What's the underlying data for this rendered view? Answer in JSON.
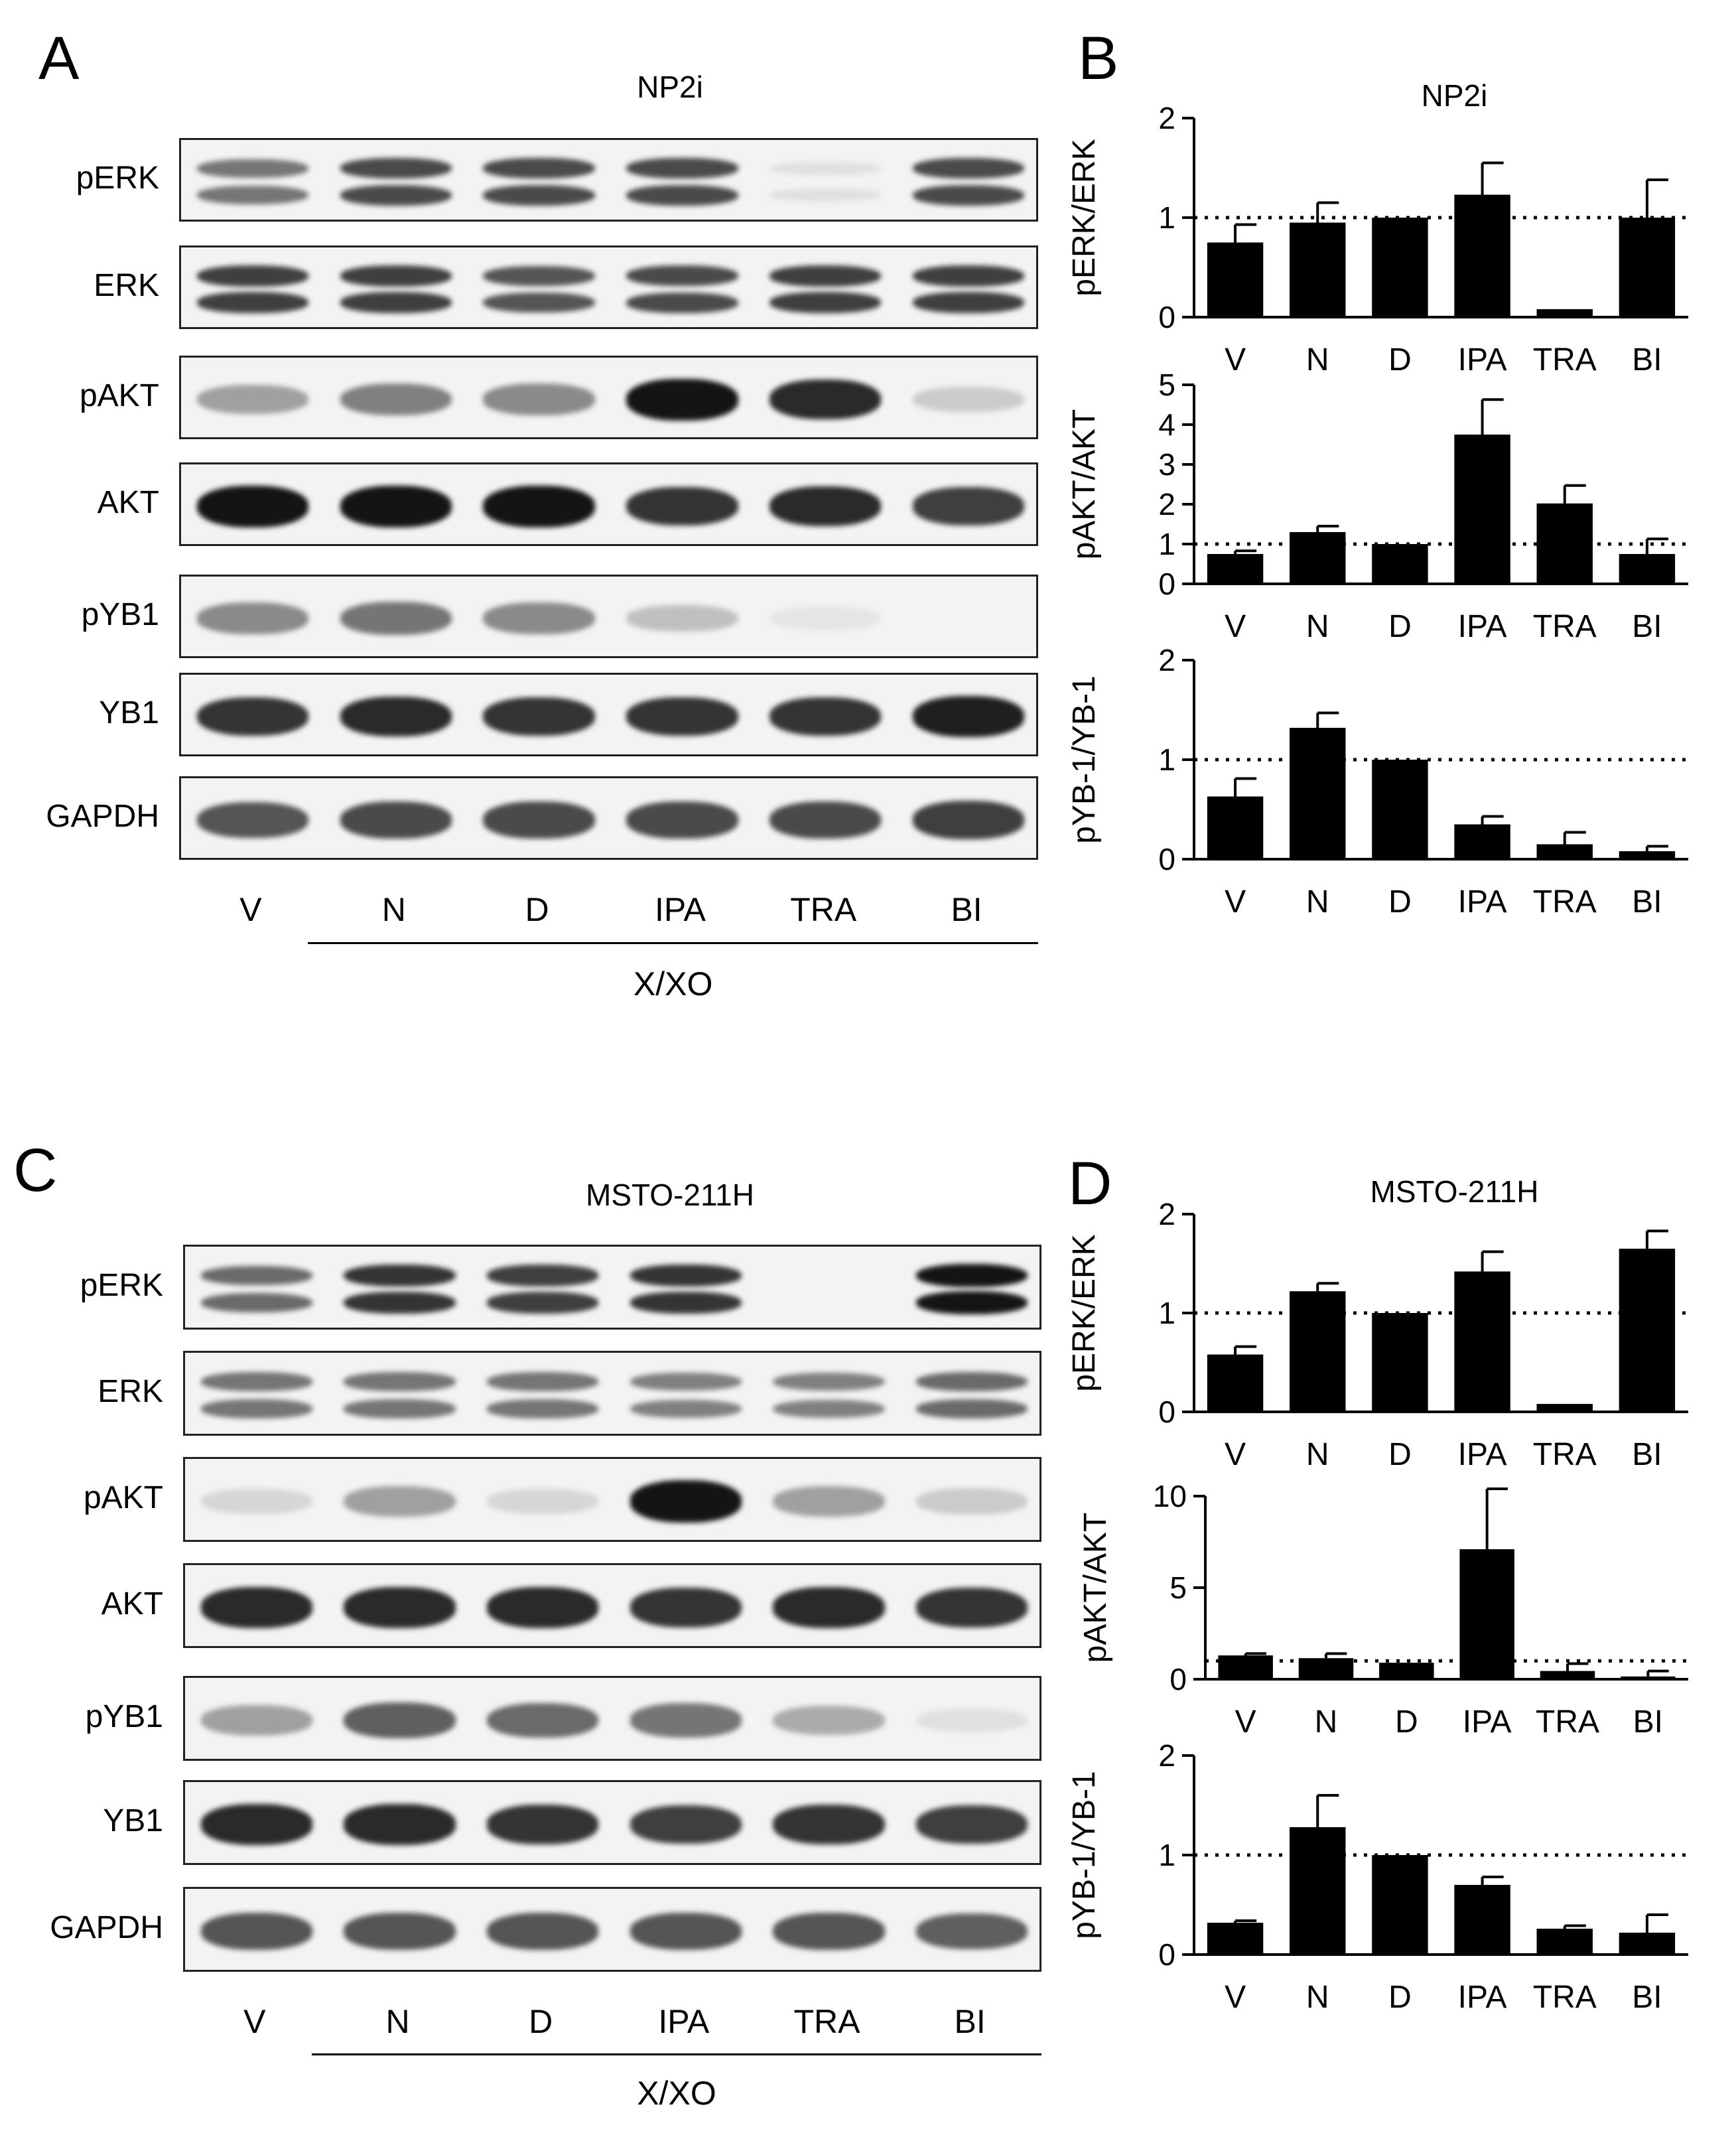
{
  "panels": {
    "A": {
      "letter": "A",
      "title": "NP2i",
      "rows": [
        "pERK",
        "ERK",
        "pAKT",
        "AKT",
        "pYB1",
        "YB1",
        "GAPDH"
      ],
      "lanes": [
        "V",
        "N",
        "D",
        "IPA",
        "TRA",
        "BI"
      ],
      "group_label": "X/XO"
    },
    "B": {
      "letter": "B",
      "title": "NP2i"
    },
    "C": {
      "letter": "C",
      "title": "MSTO-211H",
      "rows": [
        "pERK",
        "ERK",
        "pAKT",
        "AKT",
        "pYB1",
        "YB1",
        "GAPDH"
      ],
      "lanes": [
        "V",
        "N",
        "D",
        "IPA",
        "TRA",
        "BI"
      ],
      "group_label": "X/XO"
    },
    "D": {
      "letter": "D",
      "title": "MSTO-211H"
    }
  },
  "blot_intensity": {
    "A": {
      "pERK": [
        0.55,
        0.75,
        0.75,
        0.75,
        0.05,
        0.75
      ],
      "ERK": [
        0.8,
        0.8,
        0.7,
        0.75,
        0.8,
        0.8
      ],
      "pAKT": [
        0.35,
        0.5,
        0.45,
        1.0,
        0.9,
        0.15
      ],
      "AKT": [
        1.0,
        1.0,
        1.0,
        0.85,
        0.9,
        0.8
      ],
      "pYB1": [
        0.45,
        0.55,
        0.45,
        0.2,
        0.03,
        0.0
      ],
      "YB1": [
        0.85,
        0.9,
        0.85,
        0.85,
        0.85,
        0.95
      ],
      "GAPDH": [
        0.7,
        0.75,
        0.75,
        0.75,
        0.75,
        0.8
      ]
    },
    "C": {
      "pERK": [
        0.6,
        0.85,
        0.8,
        0.85,
        0.0,
        1.0
      ],
      "ERK": [
        0.55,
        0.55,
        0.55,
        0.5,
        0.5,
        0.6
      ],
      "pAKT": [
        0.1,
        0.35,
        0.1,
        1.0,
        0.35,
        0.15
      ],
      "AKT": [
        0.9,
        0.9,
        0.9,
        0.85,
        0.9,
        0.85
      ],
      "pYB1": [
        0.35,
        0.65,
        0.6,
        0.55,
        0.3,
        0.05
      ],
      "YB1": [
        0.9,
        0.9,
        0.85,
        0.8,
        0.85,
        0.8
      ],
      "GAPDH": [
        0.7,
        0.7,
        0.7,
        0.7,
        0.7,
        0.65
      ]
    }
  },
  "chart_data": [
    {
      "panel": "B",
      "type": "bar",
      "title": "NP2i",
      "categories": [
        "V",
        "N",
        "D",
        "IPA",
        "TRA",
        "BI"
      ],
      "values": [
        0.75,
        0.95,
        1.0,
        1.23,
        0.08,
        1.0
      ],
      "errors": [
        0.18,
        0.2,
        0.0,
        0.32,
        0.0,
        0.38
      ],
      "ylabel": "pERK/ERK",
      "ylim": [
        0,
        2
      ],
      "yticks": [
        "0",
        "1",
        "2"
      ],
      "reference_line": 1,
      "color": "#000000"
    },
    {
      "panel": "B",
      "type": "bar",
      "categories": [
        "V",
        "N",
        "D",
        "IPA",
        "TRA",
        "BI"
      ],
      "values": [
        0.75,
        1.3,
        1.0,
        3.75,
        2.02,
        0.75
      ],
      "errors": [
        0.08,
        0.15,
        0.0,
        0.88,
        0.45,
        0.38
      ],
      "ylabel": "pAKT/AKT",
      "ylim": [
        0,
        5
      ],
      "yticks": [
        "0",
        "1",
        "2",
        "3",
        "4",
        "5"
      ],
      "reference_line": 1,
      "color": "#000000"
    },
    {
      "panel": "B",
      "type": "bar",
      "categories": [
        "V",
        "N",
        "D",
        "IPA",
        "TRA",
        "BI"
      ],
      "values": [
        0.63,
        1.32,
        1.0,
        0.35,
        0.15,
        0.08
      ],
      "errors": [
        0.18,
        0.15,
        0.0,
        0.08,
        0.12,
        0.05
      ],
      "ylabel": "pYB-1/YB-1",
      "ylim": [
        0,
        2
      ],
      "yticks": [
        "0",
        "1",
        "2"
      ],
      "reference_line": 1,
      "color": "#000000"
    },
    {
      "panel": "D",
      "type": "bar",
      "title": "MSTO-211H",
      "categories": [
        "V",
        "N",
        "D",
        "IPA",
        "TRA",
        "BI"
      ],
      "values": [
        0.58,
        1.22,
        1.0,
        1.42,
        0.08,
        1.65
      ],
      "errors": [
        0.08,
        0.08,
        0.0,
        0.2,
        0.0,
        0.18
      ],
      "ylabel": "pERK/ERK",
      "ylim": [
        0,
        2
      ],
      "yticks": [
        "0",
        "1",
        "2"
      ],
      "reference_line": 1,
      "color": "#000000"
    },
    {
      "panel": "D",
      "type": "bar",
      "categories": [
        "V",
        "N",
        "D",
        "IPA",
        "TRA",
        "BI"
      ],
      "values": [
        1.3,
        1.15,
        0.9,
        7.1,
        0.45,
        0.15
      ],
      "errors": [
        0.1,
        0.25,
        0.0,
        3.3,
        0.4,
        0.3
      ],
      "ylabel": "pAKT/AKT",
      "ylim": [
        0,
        10
      ],
      "yticks": [
        "0",
        "5",
        "10"
      ],
      "reference_line": 1,
      "color": "#000000"
    },
    {
      "panel": "D",
      "type": "bar",
      "categories": [
        "V",
        "N",
        "D",
        "IPA",
        "TRA",
        "BI"
      ],
      "values": [
        0.32,
        1.28,
        1.0,
        0.7,
        0.26,
        0.22
      ],
      "errors": [
        0.02,
        0.32,
        0.0,
        0.08,
        0.03,
        0.18
      ],
      "ylabel": "pYB-1/YB-1",
      "ylim": [
        0,
        2
      ],
      "yticks": [
        "0",
        "1",
        "2"
      ],
      "reference_line": 1,
      "color": "#000000"
    }
  ]
}
